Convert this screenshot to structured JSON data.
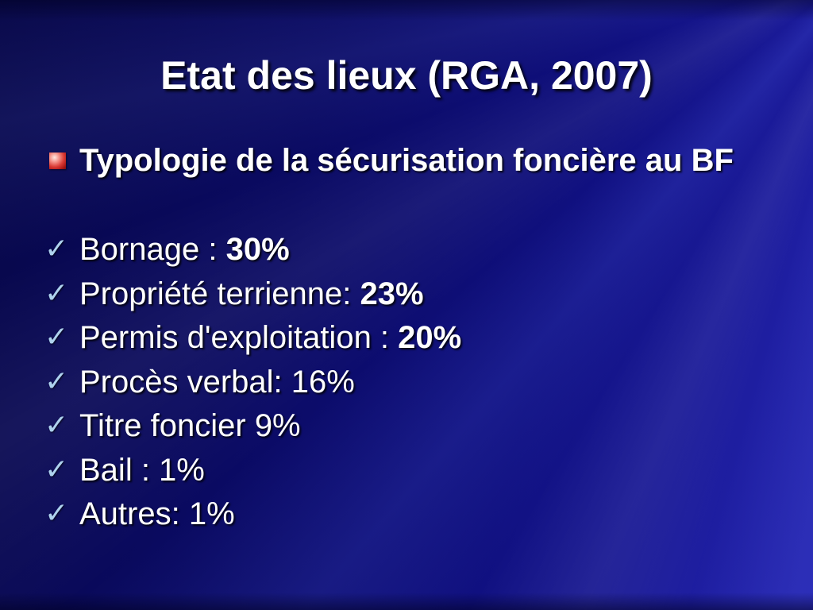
{
  "slide": {
    "title": "Etat des lieux (RGA, 2007)",
    "heading": "Typologie de la sécurisation foncière au BF",
    "checkmark_glyph": "✓",
    "items": [
      {
        "label": "Bornage : ",
        "value": "30%",
        "value_bold": true
      },
      {
        "label": "Propriété terrienne: ",
        "value": "23%",
        "value_bold": true
      },
      {
        "label": "Permis d'exploitation : ",
        "value": "20%",
        "value_bold": true
      },
      {
        "label": "Procès verbal: ",
        "value": "16%",
        "value_bold": false
      },
      {
        "label": "Titre foncier ",
        "value": "9%",
        "value_bold": false
      },
      {
        "label": "Bail : ",
        "value": "1%",
        "value_bold": false
      },
      {
        "label": "Autres: ",
        "value": "1%",
        "value_bold": false
      }
    ],
    "colors": {
      "background_dark": "#070748",
      "background_mid": "#101080",
      "background_bright": "#2525b2",
      "text": "#ffffff",
      "checkmark": "#aed2ee",
      "bullet_red": "#d93a34",
      "bullet_red_dark": "#7a0d0d",
      "bullet_highlight": "#ffe9e2"
    }
  }
}
